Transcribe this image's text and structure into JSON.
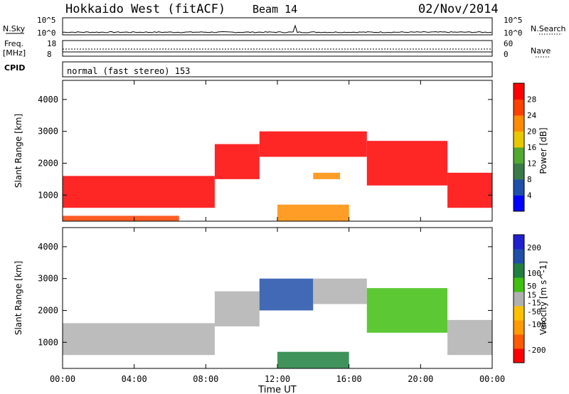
{
  "header": {
    "station": "Hokkaido West (fitACF)",
    "beam": "Beam 14",
    "date": "02/Nov/2014"
  },
  "noise_panel": {
    "label": "N.Sky",
    "left_ticks": [
      "10^5",
      "10^0"
    ],
    "right_ticks": [
      "10^5",
      "10^0"
    ],
    "right_label": "N.Search"
  },
  "freq_panel": {
    "label_line1": "Freq.",
    "label_line2": "[MHz]",
    "left_ticks": [
      "18",
      "8"
    ],
    "right_ticks": [
      "60",
      "0"
    ],
    "right_label": "Nave"
  },
  "cpid_panel": {
    "label": "CPID",
    "text": "normal (fast stereo) 153"
  },
  "colors": {
    "power_scale": [
      "#0000ff",
      "#204fa8",
      "#3a7a48",
      "#52a830",
      "#e8c800",
      "#ff8c00",
      "#ff4000",
      "#ff0000"
    ],
    "velocity_scale": [
      "#ff0000",
      "#ff5a00",
      "#ff9a00",
      "#ffc000",
      "#b0b0b0",
      "#40c010",
      "#208040",
      "#204fa8",
      "#2020d0"
    ]
  },
  "chart_data": [
    {
      "type": "heatmap",
      "title": "Power",
      "xlabel": "Time UT",
      "ylabel": "Slant Range [km]",
      "x_ticks": [
        "00:00",
        "04:00",
        "08:00",
        "12:00",
        "16:00",
        "20:00",
        "00:00"
      ],
      "y_ticks": [
        1000,
        2000,
        3000,
        4000
      ],
      "ylim": [
        180,
        4600
      ],
      "colorbar_label": "Power [dB]",
      "colorbar_ticks": [
        4,
        8,
        12,
        16,
        20,
        24,
        28
      ],
      "colorbar_range": [
        0,
        32
      ],
      "regions": [
        {
          "t0": 0.0,
          "t1": 8.5,
          "r0": 600,
          "r1": 1600,
          "level": 28
        },
        {
          "t0": 0.0,
          "t1": 6.5,
          "r0": 180,
          "r1": 350,
          "level": 26
        },
        {
          "t0": 8.5,
          "t1": 11.0,
          "r0": 1500,
          "r1": 2600,
          "level": 28
        },
        {
          "t0": 11.0,
          "t1": 17.0,
          "r0": 2200,
          "r1": 3000,
          "level": 28
        },
        {
          "t0": 12.0,
          "t1": 16.0,
          "r0": 180,
          "r1": 700,
          "level": 22
        },
        {
          "t0": 14.0,
          "t1": 15.5,
          "r0": 1500,
          "r1": 1700,
          "level": 20
        },
        {
          "t0": 17.0,
          "t1": 21.5,
          "r0": 1300,
          "r1": 2700,
          "level": 28
        },
        {
          "t0": 21.5,
          "t1": 24.0,
          "r0": 600,
          "r1": 1700,
          "level": 28
        }
      ]
    },
    {
      "type": "heatmap",
      "title": "Velocity",
      "xlabel": "Time UT",
      "ylabel": "Slant Range [km]",
      "x_ticks": [
        "00:00",
        "04:00",
        "08:00",
        "12:00",
        "16:00",
        "20:00",
        "00:00"
      ],
      "y_ticks": [
        1000,
        2000,
        3000,
        4000
      ],
      "ylim": [
        180,
        4600
      ],
      "colorbar_label": "Velocity [m s^-1]",
      "colorbar_ticks": [
        -200,
        -100,
        -50,
        -15,
        15,
        50,
        100,
        200
      ],
      "colorbar_range": [
        -250,
        250
      ],
      "regions": [
        {
          "t0": 0.0,
          "t1": 8.5,
          "r0": 600,
          "r1": 1600,
          "level": 0
        },
        {
          "t0": 8.5,
          "t1": 11.0,
          "r0": 1500,
          "r1": 2600,
          "level": 0
        },
        {
          "t0": 11.0,
          "t1": 14.0,
          "r0": 2000,
          "r1": 3000,
          "level": 150
        },
        {
          "t0": 14.0,
          "t1": 17.0,
          "r0": 2200,
          "r1": 3000,
          "level": 0
        },
        {
          "t0": 17.0,
          "t1": 21.5,
          "r0": 1300,
          "r1": 2700,
          "level": 30
        },
        {
          "t0": 12.0,
          "t1": 16.0,
          "r0": 180,
          "r1": 700,
          "level": 120
        },
        {
          "t0": 21.5,
          "t1": 24.0,
          "r0": 600,
          "r1": 1700,
          "level": 0
        }
      ]
    }
  ]
}
